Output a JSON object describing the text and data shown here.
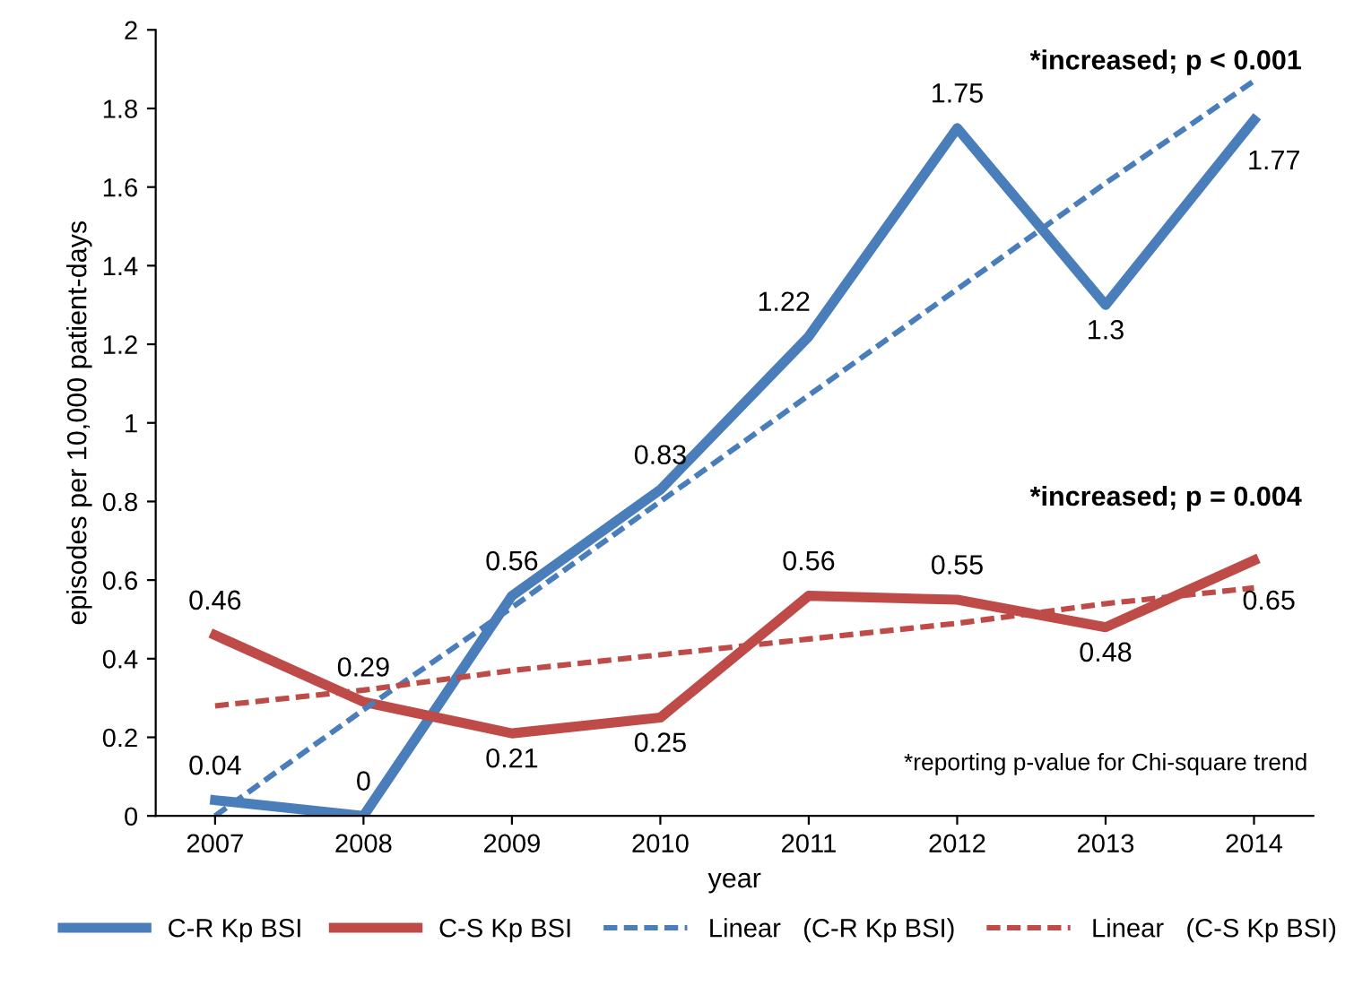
{
  "chart_data": {
    "type": "line",
    "xlabel": "year",
    "ylabel": "episodes per 10,000 patient-days",
    "x": [
      2007,
      2008,
      2009,
      2010,
      2011,
      2012,
      2013,
      2014
    ],
    "xlim": [
      2006.6,
      2014.4
    ],
    "xticks": [
      2007,
      2008,
      2009,
      2010,
      2011,
      2012,
      2013,
      2014
    ],
    "ylim": [
      0,
      2
    ],
    "yticks": [
      0,
      0.2,
      0.4,
      0.6,
      0.8,
      1,
      1.2,
      1.4,
      1.6,
      1.8,
      2
    ],
    "series": [
      {
        "name": "C-R Kp BSI",
        "color": "#4a7ebb",
        "values": [
          0.04,
          0,
          0.56,
          0.83,
          1.22,
          1.75,
          1.3,
          1.77
        ],
        "data_labels": true
      },
      {
        "name": "C-S Kp BSI",
        "color": "#be4b48",
        "values": [
          0.46,
          0.29,
          0.21,
          0.25,
          0.56,
          0.55,
          0.48,
          0.65
        ],
        "data_labels": true
      },
      {
        "name": "Linear   (C-R Kp BSI)",
        "color": "#4a7ebb",
        "values": [
          0,
          0.27,
          0.53,
          0.8,
          1.07,
          1.34,
          1.61,
          1.87
        ],
        "line_style": "dashed"
      },
      {
        "name": "Linear   (C-S Kp BSI)",
        "color": "#be4b48",
        "values": [
          0.28,
          0.32,
          0.37,
          0.41,
          0.45,
          0.49,
          0.54,
          0.58
        ],
        "line_style": "dashed"
      }
    ],
    "annotations": [
      "*increased; p < 0.001",
      "*increased; p = 0.004",
      "*reporting p-value for Chi-square trend"
    ],
    "grid": false,
    "legend": "bottom",
    "marker": "none",
    "line_style": "solid"
  }
}
